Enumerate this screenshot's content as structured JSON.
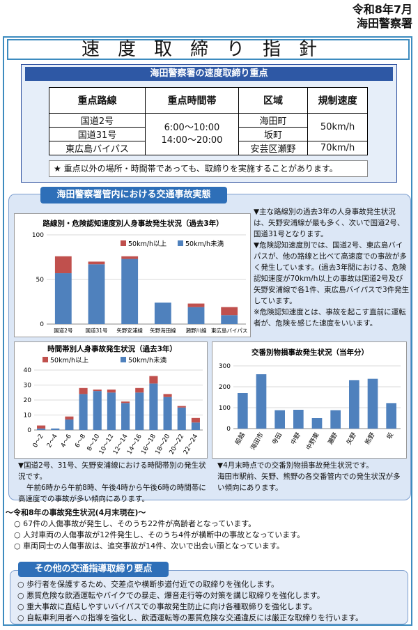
{
  "header": {
    "date": "令和8年7月",
    "station": "海田警察署"
  },
  "title": "速度取締り指針",
  "enforcement": {
    "heading": "海田警察署の速度取締り重点",
    "columns": [
      "重点路線",
      "重点時間帯",
      "区域",
      "規制速度"
    ],
    "routes": [
      "国道2号",
      "国道31号",
      "東広島バイパス"
    ],
    "times": [
      "6:00〜10:00",
      "14:00〜20:00"
    ],
    "areas": [
      "海田町",
      "坂町",
      "安芸区瀬野"
    ],
    "limits": [
      "50km/h",
      "70km/h"
    ],
    "note": "★ 重点以外の場所・時間帯であっても、取締りを実施することがあります。"
  },
  "accidents": {
    "heading": "海田警察署管内における交通事故実態",
    "description": [
      "▼主な路線別の過去3年の人身事故発生状況は、矢野安浦線が最も多く、次いで国道2号、国道31号となります。",
      "▼危険認知速度別では、国道2号、東広島バイパスが、他の路線と比べて高速度での事故が多く発生しています。(過去3年間における、危険認知速度が70km/h以上の事故は国道2号及び矢野安浦線で各1件、東広島バイパスで3件発生しています。",
      "※危険認知速度とは、事故を起こす直前に運転者が、危険を感じた速度をいいます。"
    ],
    "time_note": [
      "▼国道2号、31号、矢野安浦線における時間帯別の発生状況です。",
      "午前6時から午前8時、午後4時から午後6時の時間帯に高速度での事故が多い傾向にあります。"
    ],
    "property_note": [
      "▼4月末時点での交番別物損事故発生状況です。",
      "海田市駅前、矢野、熊野の各交番管内での発生状況が多い傾向にあります。"
    ]
  },
  "chart_data": [
    {
      "type": "bar",
      "title": "路線別・危険認知速度別人身事故発生状況（過去3年）",
      "categories": [
        "国道2号",
        "国道31号",
        "矢野安浦線",
        "矢野海田線",
        "瀬野川線",
        "東広島バイパス"
      ],
      "series": [
        {
          "name": "50km/h未満",
          "color": "#4f81bd",
          "values": [
            57,
            67,
            73,
            24,
            19,
            10
          ]
        },
        {
          "name": "50km/h以上",
          "color": "#c0504d",
          "values": [
            19,
            3,
            3,
            0,
            4,
            9
          ]
        }
      ],
      "ylim": [
        0,
        100
      ],
      "yticks": [
        0,
        50,
        100
      ],
      "stacked": true,
      "legend": "top-right"
    },
    {
      "type": "bar",
      "title": "時間帯別人身事故発生状況（過去3年）",
      "categories": [
        "0〜2",
        "2〜4",
        "4〜6",
        "6〜8",
        "8〜10",
        "10〜12",
        "12〜14",
        "14〜16",
        "16〜18",
        "18〜20",
        "20〜22",
        "22〜24"
      ],
      "series": [
        {
          "name": "50km/h未満",
          "color": "#4f81bd",
          "values": [
            1,
            1,
            7,
            24,
            26,
            25,
            18,
            25,
            31,
            22,
            15,
            5
          ]
        },
        {
          "name": "50km/h以上",
          "color": "#c0504d",
          "values": [
            2,
            0,
            2,
            4,
            1,
            2,
            1,
            3,
            5,
            2,
            1,
            3
          ]
        }
      ],
      "ylim": [
        0,
        40
      ],
      "yticks": [
        0,
        10,
        20,
        30,
        40
      ],
      "stacked": true,
      "legend": "top"
    },
    {
      "type": "bar",
      "title": "交番別物損事故発生状況（当年分）",
      "categories": [
        "船越",
        "海田市",
        "寺田",
        "中野",
        "中野東",
        "瀬野",
        "矢野",
        "熊野",
        "坂"
      ],
      "series": [
        {
          "name": "",
          "color": "#4f81bd",
          "values": [
            170,
            260,
            88,
            90,
            50,
            88,
            232,
            238,
            122
          ]
        }
      ],
      "ylim": [
        0,
        300
      ],
      "yticks": [
        0,
        100,
        200,
        300
      ]
    }
  ],
  "status": {
    "heading": "〜令和8年の事故発生状況(4月末現在)〜",
    "items": [
      "○ 67件の人傷事故が発生し、そのうち22件が高齢者となっています。",
      "○ 人対車両の人傷事故が12件発生し、そのうち4件が横断中の事故となっています。",
      "○ 車両同士の人傷事故は、追突事故が14件、次いで出会い頭となっています。"
    ]
  },
  "other": {
    "heading": "その他の交通指導取締り要点",
    "items": [
      "○ 歩行者を保護するため、交差点や横断歩道付近での取締りを強化します。",
      "○ 悪質危険な飲酒運転やバイクでの暴走、爆音走行等の対策を講じ取締りを強化します。",
      "○ 重大事故に直結しやすいバイパスでの事故発生防止に向け各種取締りを強化します。",
      "○ 自転車利用者への指導を強化し、飲酒運転等の悪質危険な交通違反には厳正な取締りを行います。"
    ]
  }
}
